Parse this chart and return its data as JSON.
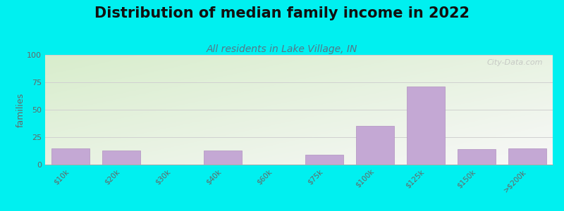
{
  "title": "Distribution of median family income in 2022",
  "subtitle": "All residents in Lake Village, IN",
  "ylabel": "families",
  "categories": [
    "$10k",
    "$20k",
    "$30k",
    "$40k",
    "$60k",
    "$75k",
    "$100k",
    "$125k",
    "$150k",
    ">$200k"
  ],
  "values": [
    15,
    13,
    0,
    13,
    0,
    9,
    35,
    71,
    14,
    15
  ],
  "bar_color": "#c4a8d4",
  "bar_edgecolor": "#b090c0",
  "ylim": [
    0,
    100
  ],
  "yticks": [
    0,
    25,
    50,
    75,
    100
  ],
  "background_outer": "#00f0f0",
  "background_plot_top_left": "#d8edcc",
  "background_plot_bottom_right": "#f8f8f8",
  "grid_color": "#d0d0d0",
  "title_fontsize": 15,
  "subtitle_fontsize": 10,
  "subtitle_color": "#557788",
  "watermark_text": "City-Data.com",
  "ylabel_color": "#666666",
  "tick_color": "#666666",
  "figsize": [
    8.0,
    3.0
  ],
  "dpi": 100
}
